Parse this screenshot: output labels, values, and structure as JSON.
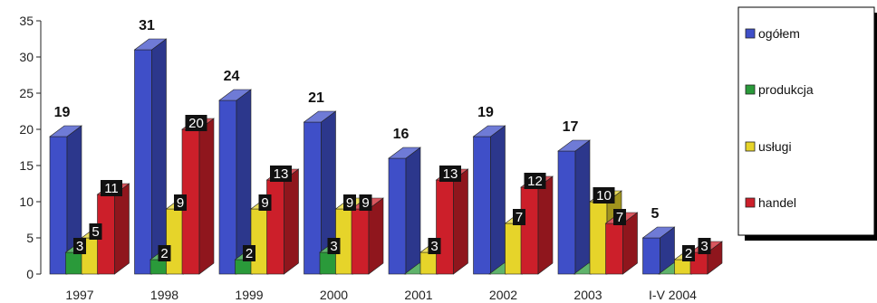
{
  "chart_data": {
    "type": "bar",
    "categories": [
      "1997",
      "1998",
      "1999",
      "2000",
      "2001",
      "2002",
      "2003",
      "I-V 2004"
    ],
    "series": [
      {
        "name": "ogółem",
        "color": "#3f4fc8",
        "values": [
          19,
          31,
          24,
          21,
          16,
          19,
          17,
          5
        ]
      },
      {
        "name": "produkcja",
        "color": "#2a9a3a",
        "values": [
          3,
          2,
          2,
          3,
          0,
          0,
          0,
          0
        ]
      },
      {
        "name": "usługi",
        "color": "#e6d42a",
        "values": [
          5,
          9,
          9,
          9,
          3,
          7,
          10,
          2
        ]
      },
      {
        "name": "handel",
        "color": "#cc1f2a",
        "values": [
          11,
          20,
          13,
          9,
          13,
          12,
          7,
          3
        ]
      }
    ],
    "data_labels": [
      [
        "19",
        "3",
        "5",
        "11"
      ],
      [
        "31",
        "2",
        "9",
        "20"
      ],
      [
        "24",
        "2",
        "9",
        "13"
      ],
      [
        "21",
        "3",
        "9",
        "9"
      ],
      [
        "16",
        "",
        "3",
        "13"
      ],
      [
        "19",
        "",
        "7",
        "12"
      ],
      [
        "17",
        "",
        "10",
        "7"
      ],
      [
        "5",
        "",
        "2",
        "3"
      ]
    ],
    "yticks": [
      "0",
      "5",
      "10",
      "15",
      "20",
      "25",
      "30",
      "35"
    ],
    "ylim": [
      0,
      35
    ],
    "grid": false,
    "legend_position": "right",
    "three_d": true
  }
}
